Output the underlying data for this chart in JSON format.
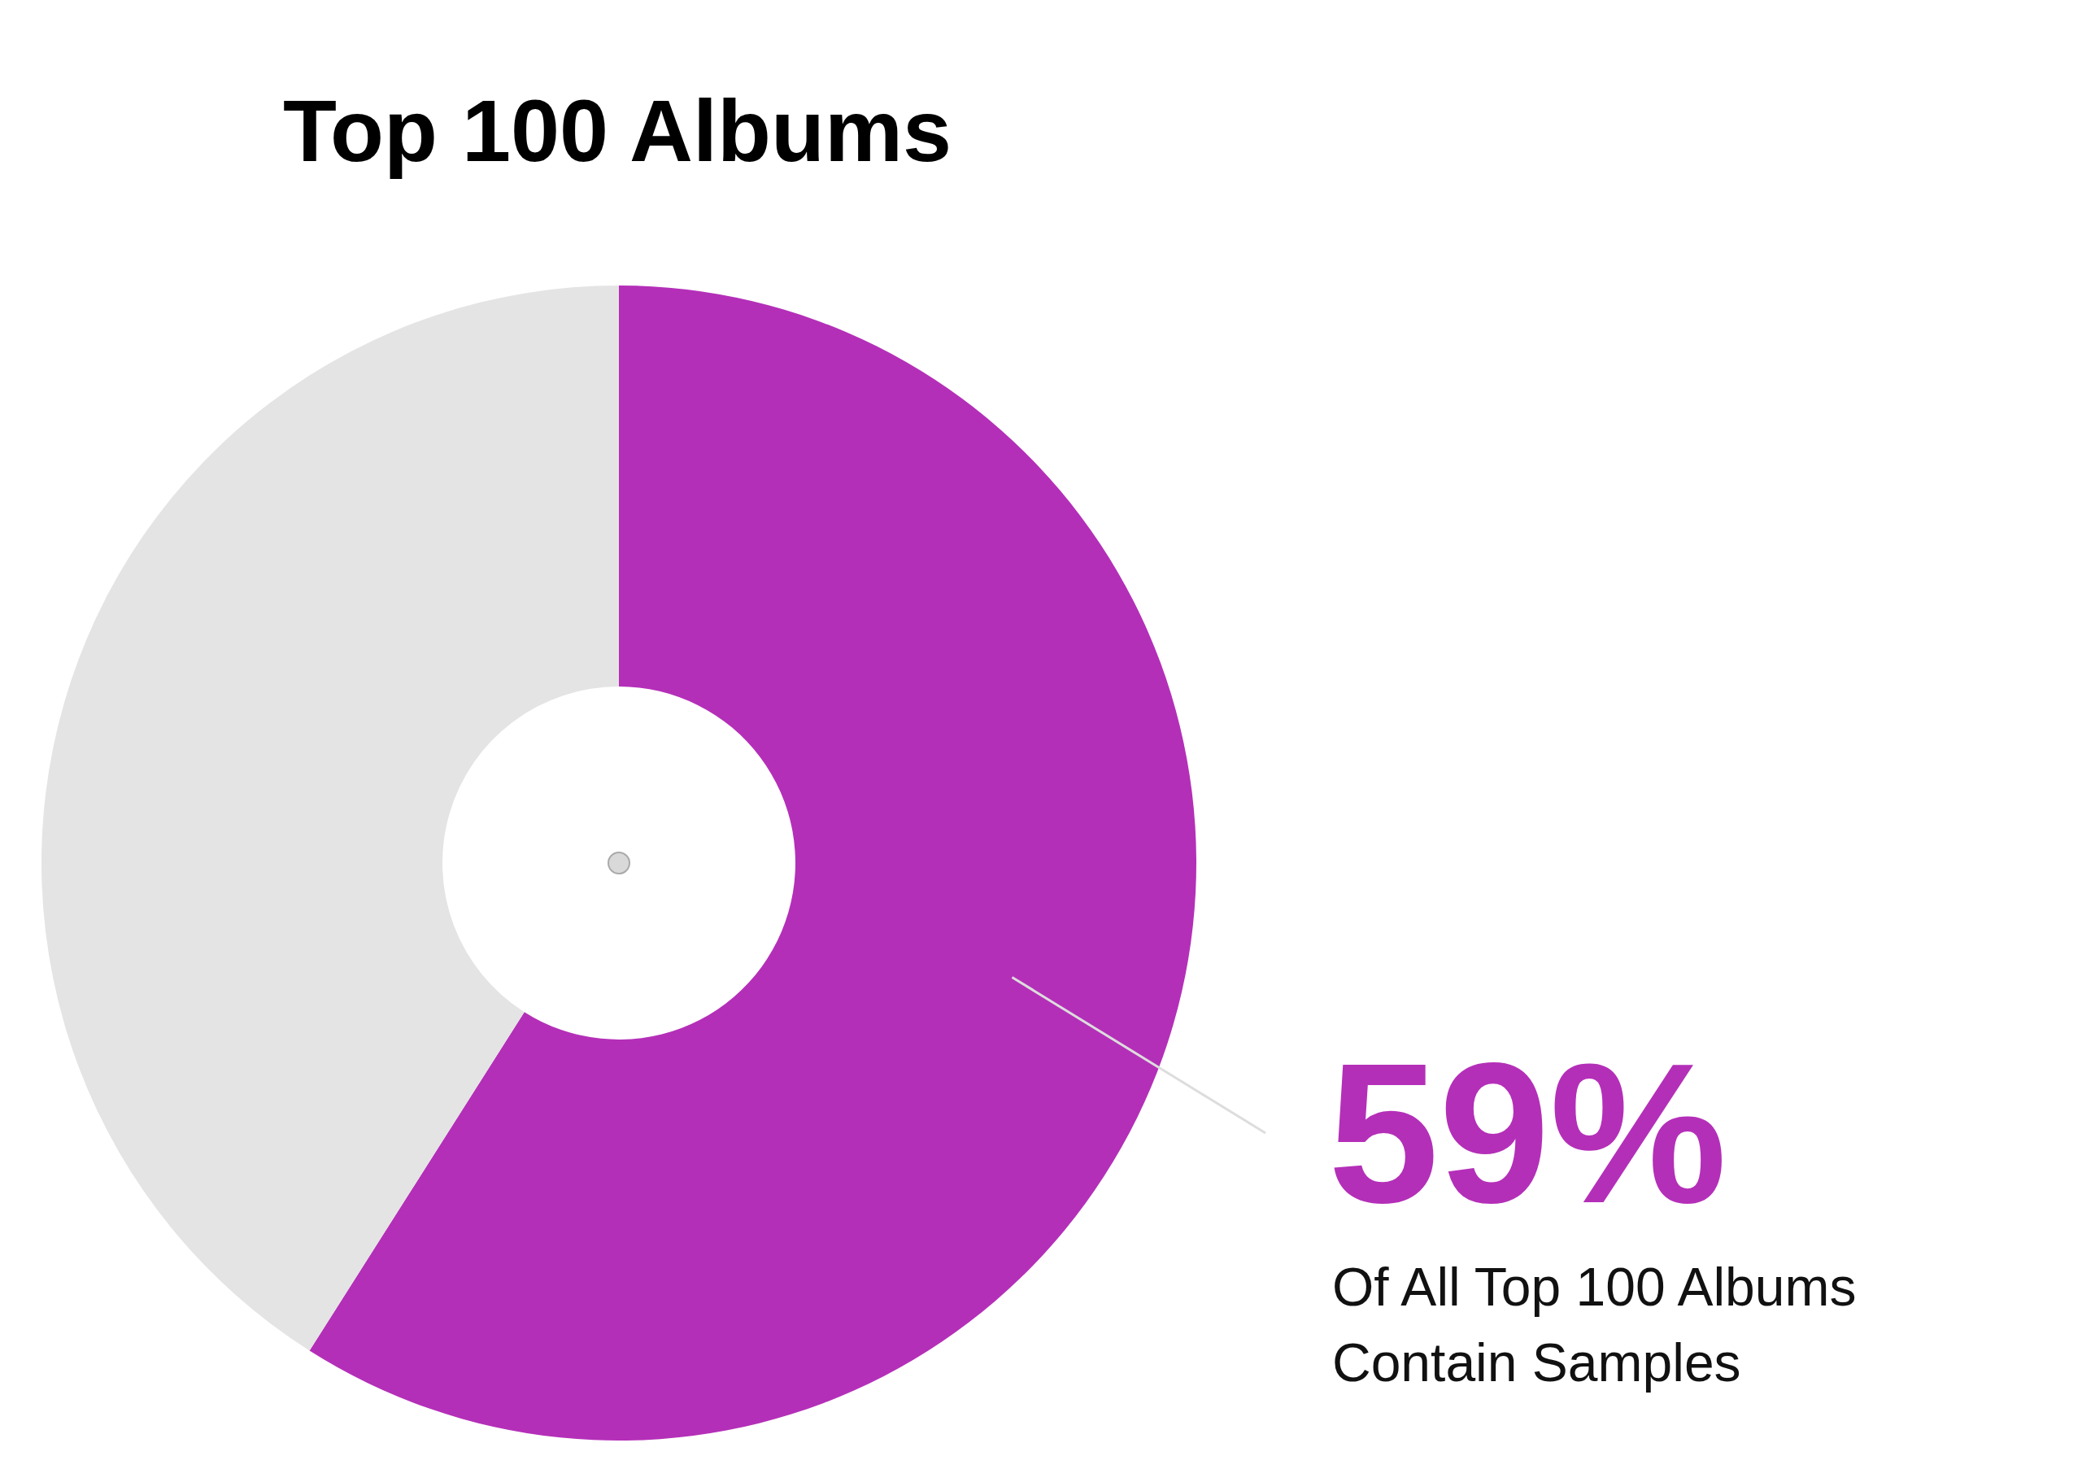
{
  "chart_data": {
    "type": "donut",
    "title": "Top 100 Albums",
    "categories": [
      null,
      null
    ],
    "values": [
      59,
      41
    ],
    "colors": [
      "#b42fb8",
      "#e4e4e4"
    ],
    "value_labels": [
      "59%",
      null
    ],
    "annotations": [
      "Of All Top 100 Albums Contain Samples"
    ]
  }
}
